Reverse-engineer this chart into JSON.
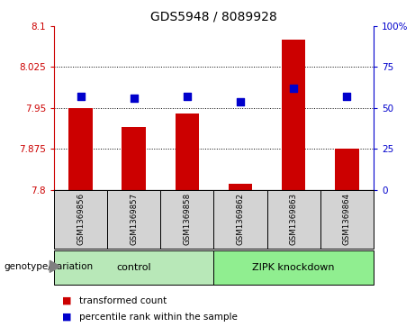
{
  "title": "GDS5948 / 8089928",
  "samples": [
    "GSM1369856",
    "GSM1369857",
    "GSM1369858",
    "GSM1369862",
    "GSM1369863",
    "GSM1369864"
  ],
  "bar_values": [
    7.95,
    7.915,
    7.94,
    7.81,
    8.075,
    7.875
  ],
  "percentile_values": [
    57,
    56,
    57,
    54,
    62,
    57
  ],
  "bar_color": "#cc0000",
  "dot_color": "#0000cc",
  "ylim_left": [
    7.8,
    8.1
  ],
  "ylim_right": [
    0,
    100
  ],
  "yticks_left": [
    7.8,
    7.875,
    7.95,
    8.025,
    8.1
  ],
  "ytick_labels_left": [
    "7.8",
    "7.875",
    "7.95",
    "8.025",
    "8.1"
  ],
  "yticks_right": [
    0,
    25,
    50,
    75,
    100
  ],
  "ytick_labels_right": [
    "0",
    "25",
    "50",
    "75",
    "100%"
  ],
  "grid_values": [
    7.875,
    7.95,
    8.025
  ],
  "groups": [
    {
      "label": "control",
      "indices": [
        0,
        1,
        2
      ],
      "color": "#90ee90"
    },
    {
      "label": "ZIPK knockdown",
      "indices": [
        3,
        4,
        5
      ],
      "color": "#90ee90"
    }
  ],
  "group_label_prefix": "genotype/variation",
  "legend_bar_label": "transformed count",
  "legend_dot_label": "percentile rank within the sample",
  "bar_width": 0.45,
  "bar_bottom": 7.8,
  "dot_size": 40,
  "sample_bg_color": "#d3d3d3",
  "control_color": "#b8e8b8",
  "zipk_color": "#90ee90"
}
